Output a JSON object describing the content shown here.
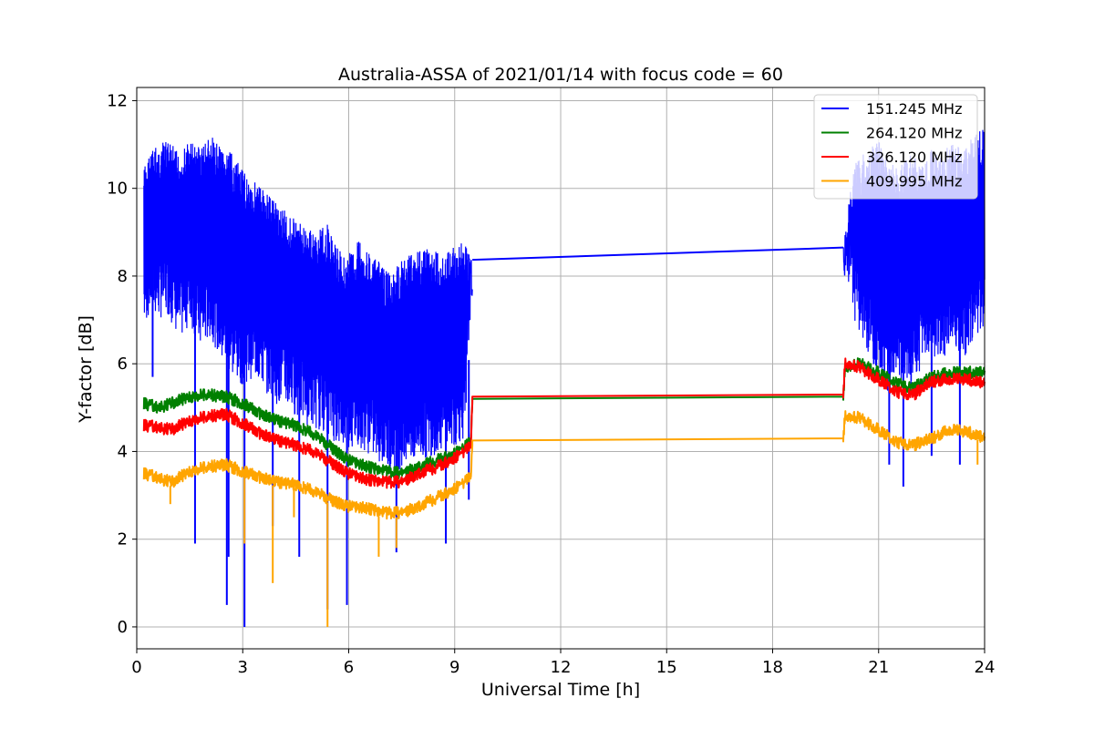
{
  "chart_data": {
    "type": "line",
    "title": "Australia-ASSA of 2021/01/14 with focus code = 60",
    "xlabel": "Universal Time [h]",
    "ylabel": "Y-factor [dB]",
    "xlim": [
      0,
      24
    ],
    "ylim": [
      -0.5,
      12.3
    ],
    "xticks": [
      0,
      3,
      6,
      9,
      12,
      15,
      18,
      21,
      24
    ],
    "yticks": [
      0,
      2,
      4,
      6,
      8,
      10,
      12
    ],
    "grid": true,
    "legend_position": "top-right",
    "series": [
      {
        "name": "151.245 MHz",
        "color": "#0000ff",
        "points": [
          [
            0.2,
            10.5
          ],
          [
            0.4,
            10.9
          ],
          [
            0.6,
            11.0
          ],
          [
            0.9,
            11.1
          ],
          [
            1.2,
            10.8
          ],
          [
            1.5,
            11.1
          ],
          [
            1.8,
            11.0
          ],
          [
            2.1,
            11.2
          ],
          [
            2.4,
            10.9
          ],
          [
            2.7,
            10.8
          ],
          [
            3.0,
            10.4
          ],
          [
            3.3,
            10.2
          ],
          [
            3.6,
            10.0
          ],
          [
            3.9,
            9.8
          ],
          [
            4.2,
            9.5
          ],
          [
            4.5,
            9.3
          ],
          [
            4.8,
            9.1
          ],
          [
            5.1,
            9.0
          ],
          [
            5.4,
            9.2
          ],
          [
            5.7,
            8.6
          ],
          [
            6.0,
            8.5
          ],
          [
            6.3,
            8.9
          ],
          [
            6.6,
            8.5
          ],
          [
            6.9,
            8.3
          ],
          [
            7.2,
            8.0
          ],
          [
            7.5,
            8.4
          ],
          [
            7.8,
            8.6
          ],
          [
            8.1,
            8.7
          ],
          [
            8.4,
            8.6
          ],
          [
            8.7,
            8.5
          ],
          [
            9.0,
            8.7
          ],
          [
            9.3,
            8.8
          ],
          [
            9.5,
            8.37
          ],
          [
            20.0,
            8.65
          ],
          [
            20.3,
            10.6
          ],
          [
            20.6,
            10.8
          ],
          [
            21.0,
            11.1
          ],
          [
            21.3,
            10.7
          ],
          [
            21.6,
            10.5
          ],
          [
            21.9,
            10.8
          ],
          [
            22.2,
            10.6
          ],
          [
            22.5,
            10.9
          ],
          [
            22.8,
            10.7
          ],
          [
            23.1,
            11.2
          ],
          [
            23.4,
            10.8
          ],
          [
            23.7,
            11.3
          ],
          [
            24.0,
            11.4
          ]
        ],
        "lower_envelope": [
          [
            0.2,
            6.8
          ],
          [
            0.4,
            7.2
          ],
          [
            0.6,
            7.0
          ],
          [
            0.9,
            7.1
          ],
          [
            1.2,
            6.5
          ],
          [
            1.5,
            6.9
          ],
          [
            1.8,
            6.3
          ],
          [
            2.1,
            6.6
          ],
          [
            2.4,
            6.0
          ],
          [
            2.7,
            5.7
          ],
          [
            3.0,
            5.5
          ],
          [
            3.3,
            5.7
          ],
          [
            3.6,
            5.4
          ],
          [
            3.9,
            5.1
          ],
          [
            4.2,
            5.0
          ],
          [
            4.5,
            4.8
          ],
          [
            4.8,
            4.6
          ],
          [
            5.1,
            4.5
          ],
          [
            5.4,
            4.4
          ],
          [
            5.7,
            4.1
          ],
          [
            6.0,
            4.0
          ],
          [
            6.3,
            4.1
          ],
          [
            6.6,
            3.9
          ],
          [
            6.9,
            3.7
          ],
          [
            7.2,
            3.5
          ],
          [
            7.5,
            3.6
          ],
          [
            7.8,
            3.7
          ],
          [
            8.1,
            3.8
          ],
          [
            8.4,
            3.9
          ],
          [
            8.7,
            4.0
          ],
          [
            9.0,
            4.1
          ],
          [
            9.3,
            4.3
          ],
          [
            9.5,
            8.37
          ],
          [
            20.0,
            8.65
          ],
          [
            20.3,
            7.0
          ],
          [
            20.6,
            6.3
          ],
          [
            21.0,
            5.8
          ],
          [
            21.3,
            5.3
          ],
          [
            21.6,
            5.6
          ],
          [
            21.9,
            5.4
          ],
          [
            22.2,
            5.9
          ],
          [
            22.5,
            6.2
          ],
          [
            22.8,
            6.0
          ],
          [
            23.1,
            6.5
          ],
          [
            23.4,
            6.1
          ],
          [
            23.7,
            6.6
          ],
          [
            24.0,
            6.9
          ]
        ],
        "dips": [
          [
            0.45,
            5.7
          ],
          [
            1.65,
            1.9
          ],
          [
            2.55,
            0.5
          ],
          [
            2.6,
            1.6
          ],
          [
            3.05,
            0.0
          ],
          [
            3.85,
            2.3
          ],
          [
            4.6,
            1.6
          ],
          [
            5.4,
            0.4
          ],
          [
            5.95,
            0.5
          ],
          [
            7.35,
            1.7
          ],
          [
            8.75,
            1.9
          ],
          [
            9.4,
            2.9
          ],
          [
            21.3,
            3.7
          ],
          [
            21.7,
            3.2
          ],
          [
            22.5,
            3.9
          ],
          [
            23.3,
            3.7
          ]
        ]
      },
      {
        "name": "264.120 MHz",
        "color": "#008000",
        "points": [
          [
            0.2,
            5.1
          ],
          [
            0.6,
            5.0
          ],
          [
            1.0,
            5.1
          ],
          [
            1.5,
            5.25
          ],
          [
            2.0,
            5.3
          ],
          [
            2.5,
            5.25
          ],
          [
            3.0,
            5.1
          ],
          [
            3.5,
            4.85
          ],
          [
            4.0,
            4.7
          ],
          [
            4.5,
            4.6
          ],
          [
            5.0,
            4.4
          ],
          [
            5.5,
            4.1
          ],
          [
            6.0,
            3.8
          ],
          [
            6.5,
            3.65
          ],
          [
            7.0,
            3.55
          ],
          [
            7.5,
            3.5
          ],
          [
            8.0,
            3.65
          ],
          [
            8.5,
            3.8
          ],
          [
            9.0,
            3.95
          ],
          [
            9.45,
            4.2
          ],
          [
            9.5,
            5.2
          ],
          [
            20.0,
            5.25
          ],
          [
            20.05,
            5.95
          ],
          [
            20.5,
            6.0
          ],
          [
            21.0,
            5.8
          ],
          [
            21.5,
            5.55
          ],
          [
            22.0,
            5.45
          ],
          [
            22.5,
            5.7
          ],
          [
            23.0,
            5.8
          ],
          [
            23.5,
            5.8
          ],
          [
            24.0,
            5.8
          ]
        ]
      },
      {
        "name": "326.120 MHz",
        "color": "#ff0000",
        "points": [
          [
            0.2,
            4.6
          ],
          [
            0.6,
            4.55
          ],
          [
            1.0,
            4.5
          ],
          [
            1.5,
            4.7
          ],
          [
            2.0,
            4.8
          ],
          [
            2.5,
            4.85
          ],
          [
            3.0,
            4.65
          ],
          [
            3.5,
            4.4
          ],
          [
            4.0,
            4.25
          ],
          [
            4.5,
            4.15
          ],
          [
            5.0,
            4.0
          ],
          [
            5.5,
            3.75
          ],
          [
            6.0,
            3.5
          ],
          [
            6.5,
            3.35
          ],
          [
            7.0,
            3.3
          ],
          [
            7.5,
            3.3
          ],
          [
            8.0,
            3.5
          ],
          [
            8.5,
            3.65
          ],
          [
            9.0,
            3.85
          ],
          [
            9.45,
            4.1
          ],
          [
            9.5,
            5.25
          ],
          [
            20.0,
            5.3
          ],
          [
            20.05,
            6.05
          ],
          [
            20.5,
            5.9
          ],
          [
            21.0,
            5.65
          ],
          [
            21.5,
            5.35
          ],
          [
            22.0,
            5.3
          ],
          [
            22.5,
            5.6
          ],
          [
            23.0,
            5.65
          ],
          [
            23.5,
            5.65
          ],
          [
            24.0,
            5.55
          ]
        ]
      },
      {
        "name": "409.995 MHz",
        "color": "#ffa500",
        "points": [
          [
            0.2,
            3.5
          ],
          [
            0.6,
            3.4
          ],
          [
            1.0,
            3.3
          ],
          [
            1.5,
            3.55
          ],
          [
            2.0,
            3.65
          ],
          [
            2.5,
            3.7
          ],
          [
            3.0,
            3.55
          ],
          [
            3.5,
            3.4
          ],
          [
            4.0,
            3.3
          ],
          [
            4.5,
            3.25
          ],
          [
            5.0,
            3.1
          ],
          [
            5.5,
            2.9
          ],
          [
            6.0,
            2.75
          ],
          [
            6.5,
            2.7
          ],
          [
            7.0,
            2.6
          ],
          [
            7.5,
            2.6
          ],
          [
            8.0,
            2.75
          ],
          [
            8.5,
            2.95
          ],
          [
            9.0,
            3.15
          ],
          [
            9.45,
            3.4
          ],
          [
            9.5,
            4.25
          ],
          [
            20.0,
            4.3
          ],
          [
            20.05,
            4.85
          ],
          [
            20.5,
            4.75
          ],
          [
            21.0,
            4.5
          ],
          [
            21.5,
            4.2
          ],
          [
            22.0,
            4.15
          ],
          [
            22.5,
            4.3
          ],
          [
            23.0,
            4.5
          ],
          [
            23.5,
            4.45
          ],
          [
            24.0,
            4.3
          ]
        ],
        "dips": [
          [
            0.95,
            2.8
          ],
          [
            3.05,
            1.9
          ],
          [
            3.85,
            1.0
          ],
          [
            4.45,
            2.5
          ],
          [
            5.4,
            0.0
          ],
          [
            6.85,
            1.6
          ],
          [
            7.35,
            1.8
          ],
          [
            23.8,
            3.7
          ]
        ]
      }
    ]
  }
}
